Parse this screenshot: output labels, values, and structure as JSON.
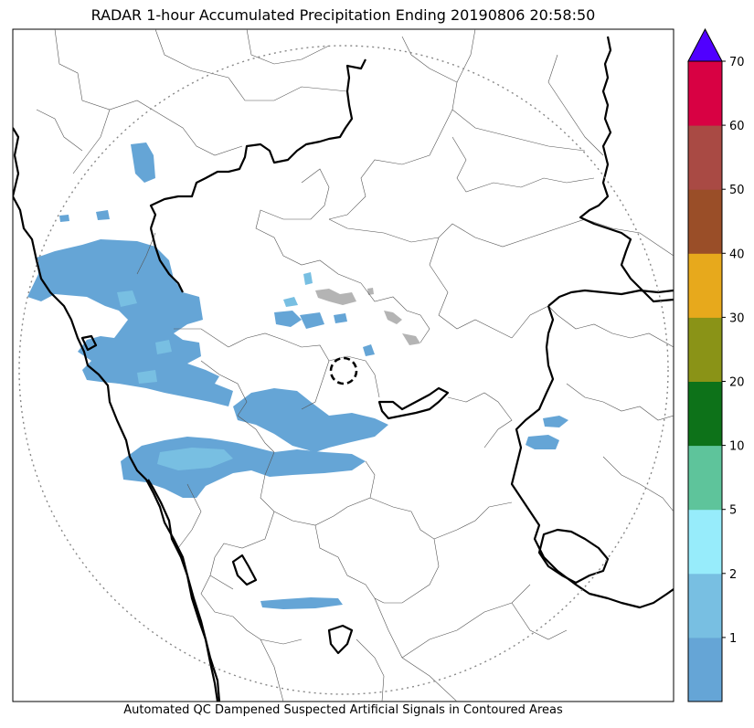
{
  "title": "RADAR 1-hour Accumulated Precipitation Ending 20190806 20:58:50",
  "footer": "Automated QC Dampened Suspected Artificial Signals in Contoured Areas",
  "colors": {
    "border_thick": "#000000",
    "border_thin": "#555555",
    "range_ring": "#888888",
    "rain_light": "#65a5d6",
    "rain_medium": "#78bfe2",
    "artifact_gray": "#b4b4b4"
  },
  "colorbar": {
    "tick_labels": [
      "1",
      "2",
      "5",
      "10",
      "20",
      "30",
      "40",
      "50",
      "60",
      "70"
    ],
    "bins": [
      {
        "color": "#65a5d6"
      },
      {
        "color": "#78bfe2"
      },
      {
        "color": "#97ecfb"
      },
      {
        "color": "#5ec49b"
      },
      {
        "color": "#0d7219"
      },
      {
        "color": "#8a9317"
      },
      {
        "color": "#e7a91c"
      },
      {
        "color": "#9a4e28"
      },
      {
        "color": "#a94a44"
      },
      {
        "color": "#d80143"
      }
    ],
    "extend_max_color": "#5000ff"
  }
}
